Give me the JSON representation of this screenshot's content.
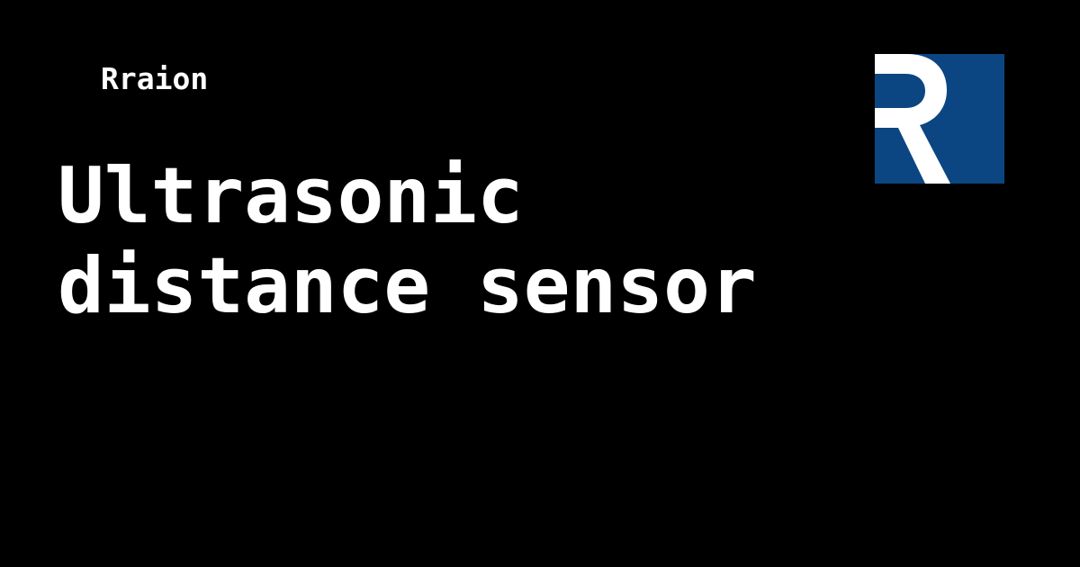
{
  "brand": {
    "name": "Rraion",
    "logo_icon": "rraion-r-logo-icon",
    "logo_letter": "R",
    "logo_background": "#0B4682",
    "logo_foreground": "#FFFFFF"
  },
  "headline": {
    "lines": [
      "Ultrasonic",
      "distance sensor"
    ]
  },
  "colors": {
    "background": "#000000",
    "text": "#FFFFFF"
  }
}
